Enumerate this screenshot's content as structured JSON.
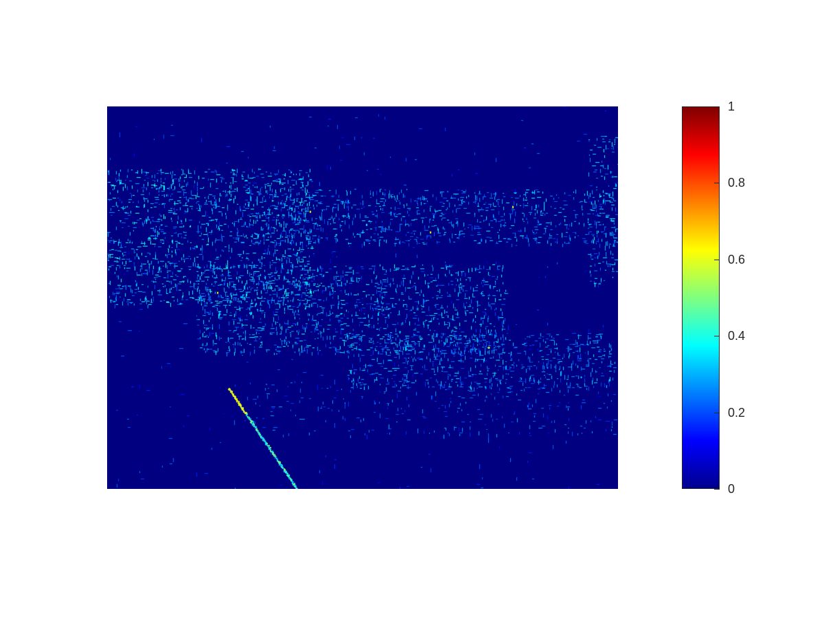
{
  "chart_data": {
    "type": "heatmap",
    "title": "",
    "xlabel": "",
    "ylabel": "",
    "axes_visible": false,
    "colormap": "jet",
    "clim": [
      0,
      1
    ],
    "background_value": 0,
    "colorbar": {
      "placement": "right",
      "ticks": [
        0,
        0.2,
        0.4,
        0.6,
        0.8,
        1
      ],
      "tick_labels": [
        "0",
        "0.2",
        "0.4",
        "0.6",
        "0.8",
        "1"
      ]
    },
    "description_values": {
      "dominant_value": 0,
      "edge_values_range": [
        0.2,
        0.45
      ],
      "peak_value": 0.65
    }
  }
}
